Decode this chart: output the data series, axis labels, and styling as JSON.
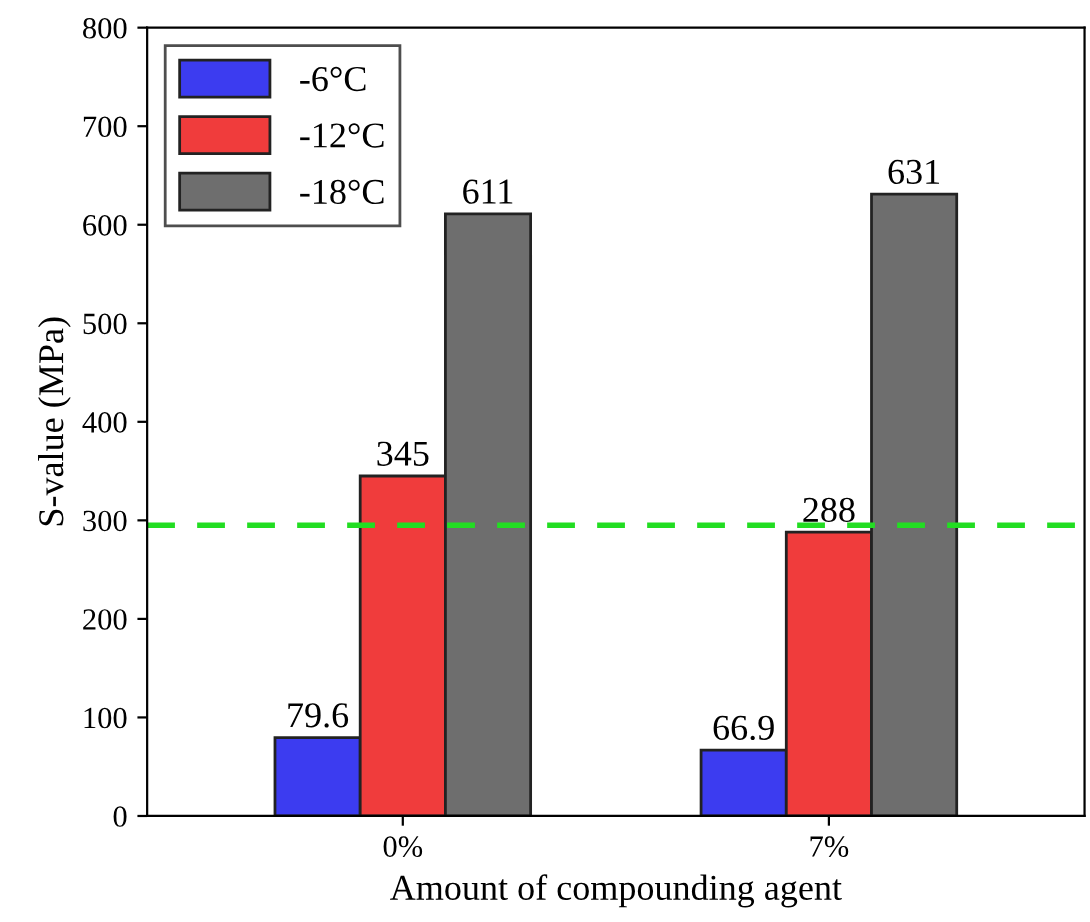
{
  "chart_data": {
    "type": "bar",
    "xlabel": "Amount of compounding agent",
    "ylabel": "S-value (MPa)",
    "categories": [
      "0%",
      "7%"
    ],
    "series": [
      {
        "name": "-6°C",
        "color": "#3c3cf0",
        "values": [
          79.6,
          66.9
        ]
      },
      {
        "name": "-12°C",
        "color": "#f03c3c",
        "values": [
          345,
          288
        ]
      },
      {
        "name": "-18°C",
        "color": "#6e6e6e",
        "values": [
          611,
          631
        ]
      }
    ],
    "data_labels": true,
    "ylim": [
      0,
      800
    ],
    "yticks": [
      0,
      100,
      200,
      300,
      400,
      500,
      600,
      700,
      800
    ],
    "ref_lines": [
      {
        "axis": "y",
        "value": 295,
        "color": "#22dd22",
        "line_style": "dashed"
      }
    ],
    "legend": "top left",
    "grid": false
  }
}
